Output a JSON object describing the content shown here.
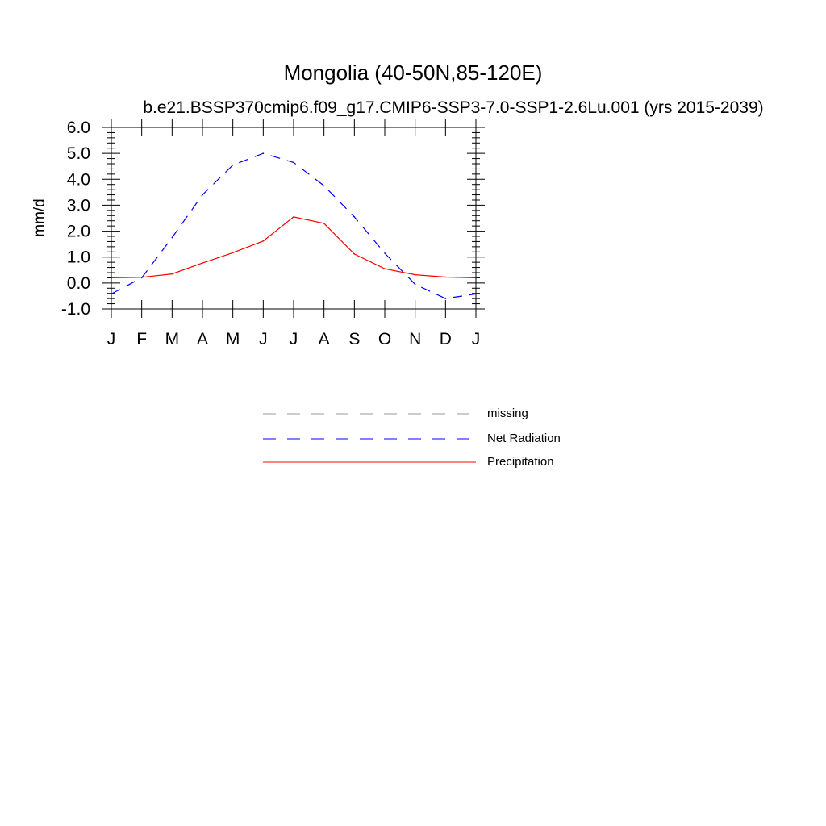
{
  "chart_data": {
    "type": "line",
    "title": "Mongolia (40-50N,85-120E)",
    "subtitle": "b.e21.BSSP370cmip6.f09_g17.CMIP6-SSP3-7.0-SSP1-2.6Lu.001 (yrs 2015-2039)",
    "ylabel": "mm/d",
    "xlabel": "",
    "ylim": [
      -1.0,
      6.0
    ],
    "yticks": [
      "6.0",
      "5.0",
      "4.0",
      "3.0",
      "2.0",
      "1.0",
      "0.0",
      "-1.0"
    ],
    "categories": [
      "J",
      "F",
      "M",
      "A",
      "M",
      "J",
      "J",
      "A",
      "S",
      "O",
      "N",
      "D",
      "J"
    ],
    "series": [
      {
        "name": "Net Radiation",
        "style": "dashed",
        "color": "#0000ff",
        "values": [
          -0.42,
          0.2,
          1.75,
          3.4,
          4.55,
          5.0,
          4.65,
          3.75,
          2.55,
          1.15,
          -0.05,
          -0.6,
          -0.42
        ]
      },
      {
        "name": "Precipitation",
        "style": "solid",
        "color": "#ff0000",
        "values": [
          0.2,
          0.22,
          0.35,
          0.77,
          1.17,
          1.62,
          2.55,
          2.3,
          1.12,
          0.55,
          0.32,
          0.23,
          0.2
        ]
      }
    ],
    "legend": {
      "position": "below",
      "entries": [
        {
          "label": "missing",
          "style": "dashed",
          "color": "#999999"
        },
        {
          "label": "Net Radiation",
          "style": "dashed",
          "color": "#0000ff"
        },
        {
          "label": "Precipitation",
          "style": "solid",
          "color": "#ff0000"
        }
      ]
    },
    "grid": false
  }
}
